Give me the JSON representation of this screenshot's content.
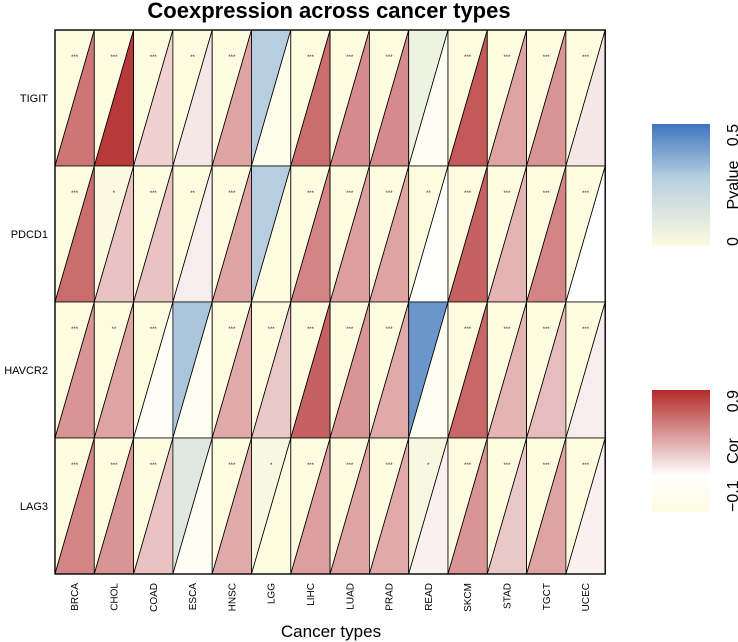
{
  "chart_data": {
    "type": "heatmap",
    "title": "Coexpression across cancer types",
    "xlabel": "Cancer types",
    "ylabel": "",
    "cancer_types": [
      "BRCA",
      "CHOL",
      "COAD",
      "ESCA",
      "HNSC",
      "LGG",
      "LIHC",
      "LUAD",
      "PRAD",
      "READ",
      "SKCM",
      "STAD",
      "TGCT",
      "UCEC"
    ],
    "genes": [
      "TIGIT",
      "PDCD1",
      "HAVCR2",
      "LAG3"
    ],
    "cor": [
      [
        0.65,
        0.85,
        0.35,
        0.28,
        0.5,
        0.0,
        0.68,
        0.58,
        0.58,
        0.1,
        0.75,
        0.5,
        0.55,
        0.28
      ],
      [
        0.68,
        0.4,
        0.4,
        0.26,
        0.5,
        -0.1,
        0.6,
        0.52,
        0.5,
        0.18,
        0.72,
        0.45,
        0.6,
        0.2
      ],
      [
        0.55,
        0.5,
        0.12,
        0.05,
        0.48,
        0.38,
        0.72,
        0.55,
        0.48,
        0.06,
        0.7,
        0.45,
        0.42,
        0.26
      ],
      [
        0.6,
        0.55,
        0.4,
        0.1,
        0.48,
        -0.1,
        0.52,
        0.5,
        0.48,
        0.25,
        0.55,
        0.38,
        0.5,
        0.25
      ]
    ],
    "pvalue": [
      [
        0,
        0,
        0,
        0,
        0,
        0.28,
        0,
        0,
        0,
        0.06,
        0,
        0,
        0,
        0
      ],
      [
        0,
        0.01,
        0,
        0,
        0,
        0.28,
        0,
        0,
        0,
        0,
        0,
        0,
        0,
        0
      ],
      [
        0,
        0,
        0,
        0.3,
        0,
        0,
        0,
        0,
        0,
        0.42,
        0,
        0,
        0,
        0
      ],
      [
        0,
        0,
        0,
        0.12,
        0,
        0.02,
        0,
        0,
        0,
        0.02,
        0,
        0,
        0,
        0
      ]
    ],
    "signif": [
      [
        "***",
        "***",
        "***",
        "**",
        "***",
        "",
        "***",
        "***",
        "***",
        "",
        "***",
        "***",
        "***",
        "***"
      ],
      [
        "***",
        "*",
        "***",
        "**",
        "***",
        "",
        "***",
        "***",
        "***",
        "**",
        "***",
        "***",
        "***",
        "***"
      ],
      [
        "***",
        "**",
        "***",
        "",
        "***",
        "***",
        "***",
        "***",
        "***",
        "",
        "***",
        "***",
        "***",
        "***"
      ],
      [
        "***",
        "***",
        "***",
        "",
        "***",
        "*",
        "***",
        "***",
        "***",
        "*",
        "***",
        "***",
        "***",
        "***"
      ]
    ],
    "pvalue_legend": {
      "title": "Pvalue",
      "range": [
        0,
        0.5
      ],
      "ticks": [
        "0",
        "0.5"
      ],
      "low_color": "#fdfbe0",
      "high_color": "#3f76bf"
    },
    "cor_legend": {
      "title": "Cor",
      "range": [
        -0.1,
        0.9
      ],
      "ticks": [
        "−0.1",
        "0.9"
      ],
      "low_color": "#fdfbe0",
      "mid_color": "#ffffff",
      "high_color": "#b22a2a"
    }
  }
}
